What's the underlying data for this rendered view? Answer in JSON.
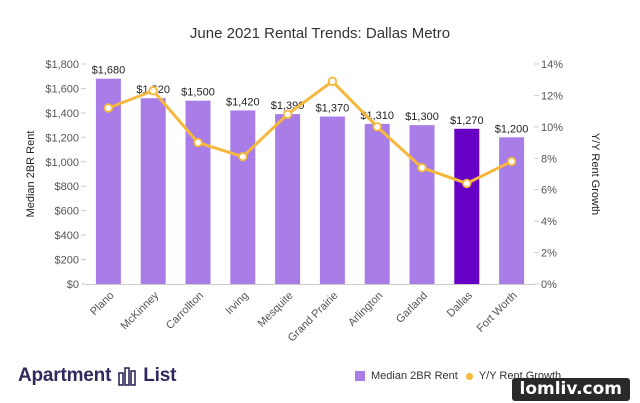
{
  "chart_data": {
    "type": "bar",
    "title": "June 2021 Rental Trends: Dallas Metro",
    "categories": [
      "Plano",
      "McKinney",
      "Carrollton",
      "Irving",
      "Mesquite",
      "Grand Prairie",
      "Arlington",
      "Garland",
      "Dallas",
      "Fort Worth"
    ],
    "series": [
      {
        "name": "Median 2BR Rent",
        "type": "bar",
        "axis": "left",
        "values": [
          1680,
          1520,
          1500,
          1420,
          1390,
          1370,
          1310,
          1300,
          1270,
          1200
        ],
        "data_labels": [
          "$1,680",
          "$1,520",
          "$1,500",
          "$1,420",
          "$1,390",
          "$1,370",
          "$1,310",
          "$1,300",
          "$1,270",
          "$1,200"
        ]
      },
      {
        "name": "Y/Y Rent Growth",
        "type": "line",
        "axis": "right",
        "values": [
          11.2,
          12.3,
          9.0,
          8.1,
          10.8,
          12.9,
          10.0,
          7.4,
          6.4,
          7.8
        ]
      }
    ],
    "ylabel": "Median 2BR Rent",
    "ylabel_right": "Y/Y Rent Growth",
    "ylim": [
      0,
      1800
    ],
    "ylim_right": [
      0,
      14
    ],
    "yticks": [
      "$0",
      "$200",
      "$400",
      "$600",
      "$800",
      "$1,000",
      "$1,200",
      "$1,400",
      "$1,600",
      "$1,800"
    ],
    "yticks_right": [
      "0%",
      "2%",
      "4%",
      "6%",
      "8%",
      "10%",
      "12%",
      "14%"
    ],
    "highlight_category": "Dallas",
    "legend_position": "bottom-right",
    "grid": false
  },
  "colors": {
    "bar": "#a97de8",
    "bar_highlight": "#6500c4",
    "line": "#f5b83d",
    "brand": "#2e2a5c"
  },
  "brand": {
    "name": "Apartment List",
    "icon": "apartment-list-logo-icon"
  },
  "watermark": "lomliv.com"
}
